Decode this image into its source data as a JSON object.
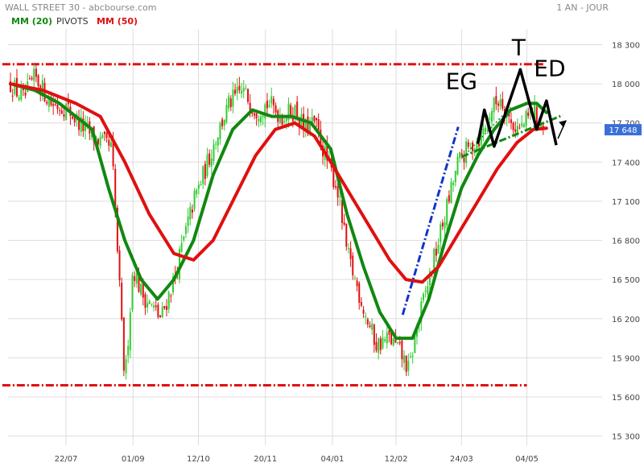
{
  "header": {
    "title": "WALL STREET 30 - abcbourse.com",
    "period": "1 AN - JOUR"
  },
  "legend": {
    "mm20": "MM (20)",
    "pivots": "PIVOTS",
    "mm50": "MM (50)"
  },
  "chart_data": {
    "type": "candlestick",
    "x_tick_labels": [
      "22/07",
      "01/09",
      "12/10",
      "20/11",
      "04/01",
      "12/02",
      "24/03",
      "04/05"
    ],
    "y_tick_values": [
      15300,
      15600,
      15900,
      16200,
      16500,
      16800,
      17100,
      17400,
      17700,
      18000,
      18300
    ],
    "y_tick_labels": [
      "15 300",
      "15 600",
      "15 900",
      "16 200",
      "16 500",
      "16 800",
      "17 100",
      "17 400",
      "17 700",
      "18 000",
      "18 300"
    ],
    "ylim": [
      15230,
      18420
    ],
    "last_price": 17648,
    "last_price_label": "17 648",
    "candle_count": 250,
    "x_tick_day_index": [
      34,
      75,
      115,
      156,
      197,
      236,
      276,
      316
    ],
    "close_path_anchors": [
      [
        0,
        18000
      ],
      [
        8,
        17880
      ],
      [
        15,
        18050
      ],
      [
        25,
        17850
      ],
      [
        34,
        17820
      ],
      [
        42,
        17700
      ],
      [
        50,
        17600
      ],
      [
        56,
        17550
      ],
      [
        62,
        17500
      ],
      [
        70,
        15700
      ],
      [
        75,
        16600
      ],
      [
        80,
        16400
      ],
      [
        86,
        16300
      ],
      [
        92,
        16200
      ],
      [
        100,
        16500
      ],
      [
        106,
        16800
      ],
      [
        112,
        17100
      ],
      [
        118,
        17300
      ],
      [
        126,
        17600
      ],
      [
        134,
        17850
      ],
      [
        142,
        17950
      ],
      [
        150,
        17800
      ],
      [
        158,
        17850
      ],
      [
        166,
        17750
      ],
      [
        174,
        17800
      ],
      [
        180,
        17650
      ],
      [
        186,
        17700
      ],
      [
        194,
        17400
      ],
      [
        200,
        17200
      ],
      [
        206,
        16700
      ],
      [
        212,
        16450
      ],
      [
        218,
        16200
      ],
      [
        224,
        16000
      ],
      [
        232,
        16050
      ],
      [
        238,
        15950
      ],
      [
        244,
        15800
      ],
      [
        248,
        16100
      ],
      [
        256,
        16500
      ],
      [
        262,
        16800
      ],
      [
        268,
        17100
      ],
      [
        274,
        17400
      ],
      [
        280,
        17500
      ],
      [
        288,
        17600
      ],
      [
        294,
        17800
      ],
      [
        300,
        17900
      ],
      [
        306,
        17700
      ],
      [
        312,
        17650
      ],
      [
        320,
        17800
      ],
      [
        326,
        17648
      ]
    ],
    "series": [
      {
        "name": "MM (20)",
        "color": "#118811",
        "values": [
          [
            0,
            18000
          ],
          [
            15,
            17950
          ],
          [
            30,
            17850
          ],
          [
            50,
            17650
          ],
          [
            60,
            17200
          ],
          [
            70,
            16800
          ],
          [
            80,
            16500
          ],
          [
            90,
            16350
          ],
          [
            100,
            16500
          ],
          [
            112,
            16800
          ],
          [
            124,
            17300
          ],
          [
            136,
            17650
          ],
          [
            148,
            17800
          ],
          [
            160,
            17750
          ],
          [
            172,
            17750
          ],
          [
            184,
            17700
          ],
          [
            196,
            17500
          ],
          [
            206,
            17000
          ],
          [
            216,
            16600
          ],
          [
            226,
            16250
          ],
          [
            236,
            16050
          ],
          [
            246,
            16050
          ],
          [
            256,
            16350
          ],
          [
            266,
            16800
          ],
          [
            276,
            17200
          ],
          [
            286,
            17450
          ],
          [
            296,
            17650
          ],
          [
            306,
            17800
          ],
          [
            316,
            17850
          ],
          [
            322,
            17850
          ],
          [
            328,
            17780
          ]
        ]
      },
      {
        "name": "MM (50)",
        "color": "#e01010",
        "values": [
          [
            0,
            18000
          ],
          [
            20,
            17950
          ],
          [
            40,
            17850
          ],
          [
            55,
            17750
          ],
          [
            70,
            17400
          ],
          [
            85,
            17000
          ],
          [
            100,
            16700
          ],
          [
            112,
            16650
          ],
          [
            124,
            16800
          ],
          [
            136,
            17100
          ],
          [
            150,
            17450
          ],
          [
            162,
            17650
          ],
          [
            174,
            17700
          ],
          [
            186,
            17600
          ],
          [
            196,
            17400
          ],
          [
            208,
            17150
          ],
          [
            220,
            16900
          ],
          [
            232,
            16650
          ],
          [
            242,
            16500
          ],
          [
            252,
            16480
          ],
          [
            262,
            16600
          ],
          [
            274,
            16850
          ],
          [
            286,
            17100
          ],
          [
            298,
            17350
          ],
          [
            310,
            17550
          ],
          [
            320,
            17650
          ],
          [
            328,
            17660
          ]
        ]
      }
    ],
    "horizontal_lines": [
      {
        "label": "resistance",
        "value": 18150,
        "color": "#e01010",
        "x_days": [
          -5,
          326
        ]
      },
      {
        "label": "support",
        "value": 15690,
        "color": "#e01010",
        "x_days": [
          -5,
          316
        ]
      }
    ],
    "trendlines": [
      {
        "color": "#1133cc",
        "style": "dash-dot",
        "points": [
          [
            240,
            16230
          ],
          [
            274,
            17670
          ]
        ]
      },
      {
        "color": "#118811",
        "style": "dash-dot",
        "points": [
          [
            276,
            17440
          ],
          [
            338,
            17760
          ]
        ]
      },
      {
        "color": "#118811",
        "style": "dotted",
        "points": [
          [
            280,
            17480
          ],
          [
            306,
            17820
          ]
        ]
      }
    ],
    "pattern": {
      "color": "#000000",
      "polyline": [
        [
          286,
          17540
        ],
        [
          290,
          17800
        ],
        [
          296,
          17520
        ],
        [
          312,
          18110
        ],
        [
          322,
          17650
        ],
        [
          328,
          17870
        ],
        [
          334,
          17530
        ]
      ],
      "arrow": [
        [
          335,
          17580
        ],
        [
          340,
          17720
        ]
      ],
      "labels": [
        {
          "text": "EG",
          "at": [
            276,
            17960
          ]
        },
        {
          "text": "T",
          "at": [
            311,
            18220
          ]
        },
        {
          "text": "ED",
          "at": [
            330,
            18060
          ]
        }
      ]
    },
    "colors": {
      "up": "#33cc33",
      "down": "#e01010",
      "grid": "#dddddd",
      "badge": "#3a6fd8"
    }
  }
}
